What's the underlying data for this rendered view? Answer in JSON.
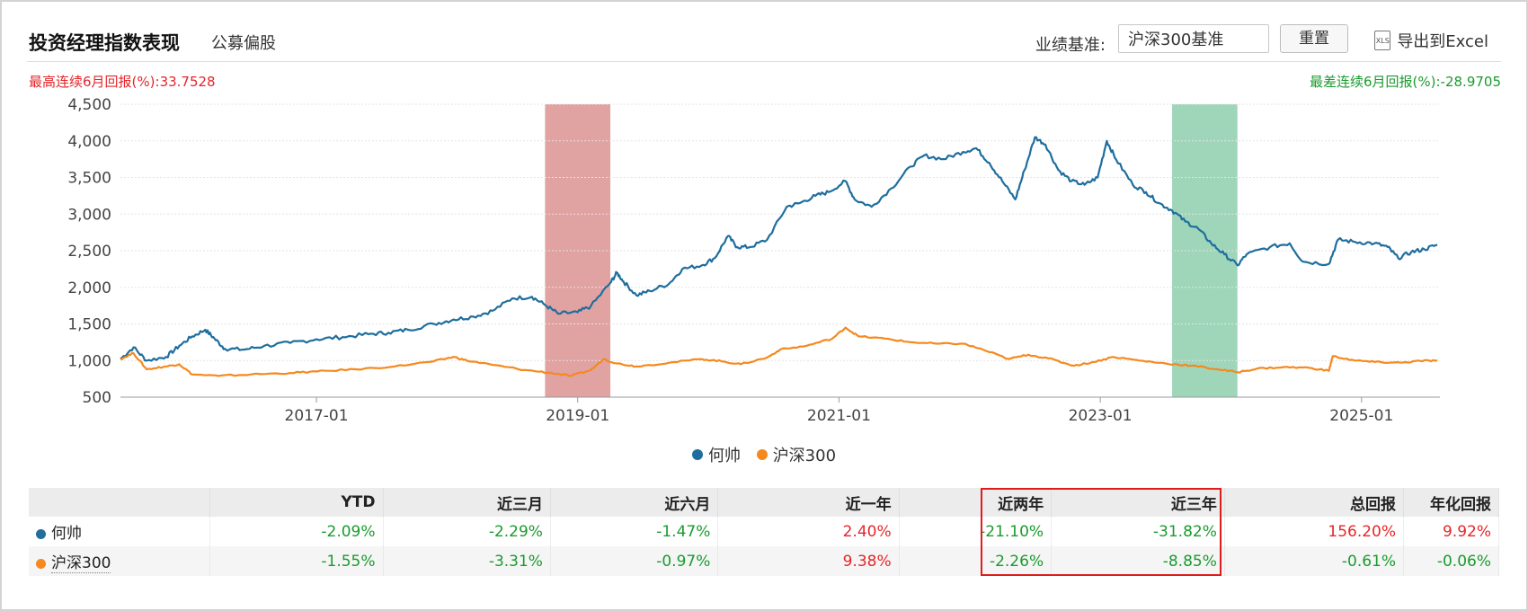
{
  "header": {
    "title": "投资经理指数表现",
    "subtitle": "公募偏股",
    "benchmark_label": "业绩基准:",
    "benchmark_value": "沪深300基准",
    "reset_label": "重置",
    "export_label": "导出到Excel",
    "export_icon": "xls-file-icon"
  },
  "summary": {
    "best_label": "最高连续6月回报(%):",
    "best_value": "33.7528",
    "worst_label": "最差连续6月回报(%):",
    "worst_value": "-28.9705"
  },
  "colors": {
    "manager": "#1f6e9e",
    "index": "#f5891e",
    "best_band": "#e1a2a2",
    "worst_band": "#9fd6ba",
    "positive": "#e5262a",
    "negative": "#1a9b2e"
  },
  "chart_data": {
    "type": "line",
    "yticks": [
      "4,500",
      "4,000",
      "3,500",
      "3,000",
      "2,500",
      "2,000",
      "1,500",
      "1,000",
      "500"
    ],
    "ylim": [
      500,
      4500
    ],
    "xlim": [
      2015.5,
      2025.6
    ],
    "xticks": [
      "2017-01",
      "2019-01",
      "2021-01",
      "2023-01",
      "2025-01"
    ],
    "grid": true,
    "legend_position": "bottom",
    "highlight_best": {
      "start": 2018.75,
      "end": 2019.25
    },
    "highlight_worst": {
      "start": 2023.55,
      "end": 2024.05
    },
    "series": [
      {
        "name": "何帅",
        "points": [
          [
            2015.5,
            1020
          ],
          [
            2015.6,
            1180
          ],
          [
            2015.7,
            1000
          ],
          [
            2015.85,
            1050
          ],
          [
            2015.95,
            1200
          ],
          [
            2016.05,
            1330
          ],
          [
            2016.15,
            1420
          ],
          [
            2016.22,
            1300
          ],
          [
            2016.3,
            1160
          ],
          [
            2016.45,
            1150
          ],
          [
            2016.6,
            1200
          ],
          [
            2016.8,
            1240
          ],
          [
            2017.0,
            1290
          ],
          [
            2017.2,
            1320
          ],
          [
            2017.4,
            1360
          ],
          [
            2017.55,
            1380
          ],
          [
            2017.7,
            1420
          ],
          [
            2017.9,
            1500
          ],
          [
            2018.05,
            1560
          ],
          [
            2018.2,
            1600
          ],
          [
            2018.35,
            1680
          ],
          [
            2018.5,
            1850
          ],
          [
            2018.65,
            1870
          ],
          [
            2018.75,
            1760
          ],
          [
            2018.85,
            1640
          ],
          [
            2019.0,
            1660
          ],
          [
            2019.1,
            1740
          ],
          [
            2019.25,
            2060
          ],
          [
            2019.3,
            2200
          ],
          [
            2019.35,
            2080
          ],
          [
            2019.45,
            1890
          ],
          [
            2019.55,
            1950
          ],
          [
            2019.7,
            2050
          ],
          [
            2019.8,
            2250
          ],
          [
            2019.95,
            2300
          ],
          [
            2020.05,
            2400
          ],
          [
            2020.15,
            2700
          ],
          [
            2020.22,
            2550
          ],
          [
            2020.32,
            2550
          ],
          [
            2020.45,
            2650
          ],
          [
            2020.6,
            3100
          ],
          [
            2020.7,
            3150
          ],
          [
            2020.82,
            3250
          ],
          [
            2020.92,
            3300
          ],
          [
            2021.05,
            3450
          ],
          [
            2021.12,
            3200
          ],
          [
            2021.25,
            3100
          ],
          [
            2021.4,
            3350
          ],
          [
            2021.55,
            3650
          ],
          [
            2021.65,
            3800
          ],
          [
            2021.8,
            3750
          ],
          [
            2021.95,
            3850
          ],
          [
            2022.05,
            3900
          ],
          [
            2022.15,
            3700
          ],
          [
            2022.25,
            3450
          ],
          [
            2022.35,
            3200
          ],
          [
            2022.42,
            3600
          ],
          [
            2022.5,
            4050
          ],
          [
            2022.58,
            3950
          ],
          [
            2022.68,
            3600
          ],
          [
            2022.78,
            3450
          ],
          [
            2022.88,
            3400
          ],
          [
            2022.98,
            3500
          ],
          [
            2023.05,
            4000
          ],
          [
            2023.12,
            3750
          ],
          [
            2023.25,
            3400
          ],
          [
            2023.35,
            3300
          ],
          [
            2023.45,
            3150
          ],
          [
            2023.55,
            3050
          ],
          [
            2023.65,
            2900
          ],
          [
            2023.75,
            2800
          ],
          [
            2023.85,
            2600
          ],
          [
            2023.95,
            2450
          ],
          [
            2024.05,
            2300
          ],
          [
            2024.12,
            2450
          ],
          [
            2024.3,
            2550
          ],
          [
            2024.45,
            2600
          ],
          [
            2024.55,
            2350
          ],
          [
            2024.75,
            2320
          ],
          [
            2024.82,
            2650
          ],
          [
            2024.95,
            2620
          ],
          [
            2025.1,
            2600
          ],
          [
            2025.2,
            2550
          ],
          [
            2025.28,
            2400
          ],
          [
            2025.38,
            2480
          ],
          [
            2025.48,
            2520
          ],
          [
            2025.58,
            2580
          ]
        ]
      },
      {
        "name": "沪深300",
        "points": [
          [
            2015.5,
            1020
          ],
          [
            2015.6,
            1100
          ],
          [
            2015.7,
            880
          ],
          [
            2015.85,
            920
          ],
          [
            2015.95,
            950
          ],
          [
            2016.05,
            810
          ],
          [
            2016.25,
            790
          ],
          [
            2016.5,
            810
          ],
          [
            2016.8,
            830
          ],
          [
            2017.0,
            850
          ],
          [
            2017.3,
            880
          ],
          [
            2017.6,
            920
          ],
          [
            2017.9,
            990
          ],
          [
            2018.05,
            1050
          ],
          [
            2018.15,
            1000
          ],
          [
            2018.35,
            940
          ],
          [
            2018.6,
            870
          ],
          [
            2018.8,
            830
          ],
          [
            2018.95,
            790
          ],
          [
            2019.1,
            870
          ],
          [
            2019.2,
            1020
          ],
          [
            2019.3,
            960
          ],
          [
            2019.45,
            920
          ],
          [
            2019.7,
            970
          ],
          [
            2019.95,
            1020
          ],
          [
            2020.1,
            990
          ],
          [
            2020.25,
            950
          ],
          [
            2020.45,
            1040
          ],
          [
            2020.55,
            1150
          ],
          [
            2020.75,
            1200
          ],
          [
            2020.95,
            1300
          ],
          [
            2021.05,
            1450
          ],
          [
            2021.15,
            1330
          ],
          [
            2021.35,
            1300
          ],
          [
            2021.55,
            1250
          ],
          [
            2021.75,
            1230
          ],
          [
            2021.95,
            1230
          ],
          [
            2022.1,
            1150
          ],
          [
            2022.3,
            1020
          ],
          [
            2022.45,
            1080
          ],
          [
            2022.6,
            1030
          ],
          [
            2022.8,
            930
          ],
          [
            2022.95,
            980
          ],
          [
            2023.1,
            1050
          ],
          [
            2023.3,
            1000
          ],
          [
            2023.5,
            960
          ],
          [
            2023.7,
            930
          ],
          [
            2023.9,
            880
          ],
          [
            2024.05,
            840
          ],
          [
            2024.2,
            890
          ],
          [
            2024.4,
            910
          ],
          [
            2024.6,
            900
          ],
          [
            2024.75,
            860
          ],
          [
            2024.78,
            1060
          ],
          [
            2024.95,
            1000
          ],
          [
            2025.1,
            980
          ],
          [
            2025.3,
            970
          ],
          [
            2025.45,
            995
          ],
          [
            2025.58,
            1000
          ]
        ]
      }
    ]
  },
  "table": {
    "headers": [
      "",
      "YTD",
      "近三月",
      "近六月",
      "近一年",
      "近两年",
      "近三年",
      "总回报",
      "年化回报"
    ],
    "rows": [
      {
        "name": "何帅",
        "values": [
          "-2.09%",
          "-2.29%",
          "-1.47%",
          "2.40%",
          "-21.10%",
          "-31.82%",
          "156.20%",
          "9.92%"
        ],
        "signs": [
          "neg",
          "neg",
          "neg",
          "pos",
          "neg",
          "neg",
          "pos",
          "pos"
        ]
      },
      {
        "name": "沪深300",
        "values": [
          "-1.55%",
          "-3.31%",
          "-0.97%",
          "9.38%",
          "-2.26%",
          "-8.85%",
          "-0.61%",
          "-0.06%"
        ],
        "signs": [
          "neg",
          "neg",
          "neg",
          "pos",
          "neg",
          "neg",
          "neg",
          "neg"
        ]
      }
    ]
  }
}
